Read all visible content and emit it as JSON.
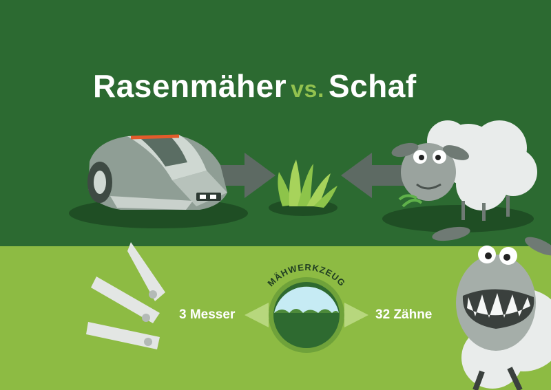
{
  "title": {
    "left": "Rasenmäher",
    "vs": "vs.",
    "right": "Schaf"
  },
  "center_badge": {
    "label": "MÄHWERKZEUG"
  },
  "comparison": {
    "left_value": "3 Messer",
    "right_value": "32 Zähne"
  },
  "colors": {
    "dark_green": "#2c6a31",
    "light_green": "#8dbb43",
    "accent_green": "#93c24f",
    "arrow_gray": "#5d6a63"
  },
  "icons": {
    "mower": "robot-lawn-mower-icon",
    "grass": "grass-tuft-icon",
    "sheep": "sheep-icon",
    "blades": "mower-blades-icon",
    "sheep_teeth": "sheep-teeth-icon"
  }
}
